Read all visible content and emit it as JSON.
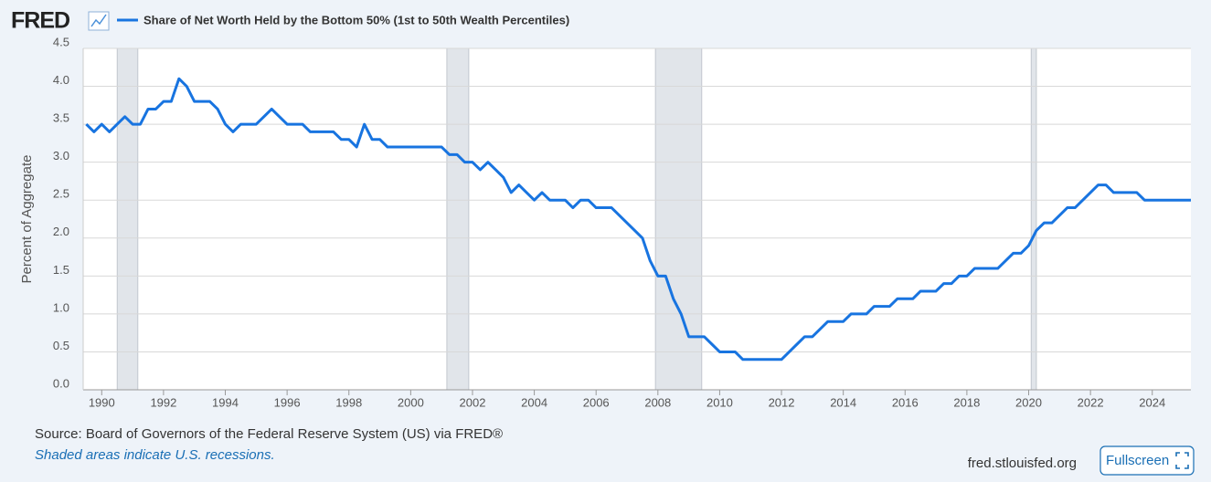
{
  "logo": "FRED",
  "chart_data": {
    "type": "line",
    "y_label": "Percent of Aggregate",
    "series": [
      {
        "name": "Share of Net Worth Held by the Bottom 50% (1st to 50th Wealth Percentiles)",
        "color": "#1874e0",
        "values": [
          3.5,
          3.4,
          3.5,
          3.4,
          3.5,
          3.6,
          3.5,
          3.5,
          3.7,
          3.7,
          3.8,
          3.8,
          4.1,
          4.0,
          3.8,
          3.8,
          3.7,
          3.5,
          3.4,
          3.5,
          3.5,
          3.7,
          3.5,
          3.5,
          3.4,
          3.4,
          3.3,
          3.3,
          3.2,
          3.5,
          3.3,
          3.3,
          3.2,
          3.2,
          3.1,
          3.1,
          3.0,
          3.0,
          2.9,
          3.0,
          2.9,
          2.8,
          2.6,
          2.7,
          2.6,
          2.5,
          2.6,
          2.5,
          2.5,
          2.4,
          2.5,
          2.5,
          2.4,
          2.4,
          2.0,
          1.7,
          1.5,
          1.5,
          1.2,
          1.0,
          0.7,
          0.7,
          0.6,
          0.5,
          0.5,
          0.4,
          0.4,
          0.6,
          0.7,
          0.7,
          0.9,
          0.9,
          1.0,
          1.0,
          1.1,
          1.1,
          1.2,
          1.2,
          1.3,
          1.3,
          1.4,
          1.4,
          1.5,
          1.5,
          1.6,
          1.6,
          1.8,
          1.8,
          1.9,
          2.1,
          2.2,
          2.2,
          2.4,
          2.4,
          2.7,
          2.7,
          2.6,
          2.6,
          2.5,
          2.5
        ]
      }
    ],
    "x": [
      1989.5,
      1989.75,
      1990,
      1990.25,
      1990.5,
      1990.75,
      1991,
      1991.25,
      1991.5,
      1991.75,
      1992,
      1992.25,
      1992.5,
      1992.75,
      1993,
      1993.5,
      1993.75,
      1994,
      1994.25,
      1994.5,
      1995,
      1995.5,
      1996,
      1996.5,
      1996.75,
      1997.5,
      1997.75,
      1998,
      1998.25,
      1998.5,
      1998.75,
      1999,
      1999.25,
      2001,
      2001.25,
      2001.5,
      2001.75,
      2002,
      2002.25,
      2002.5,
      2002.75,
      2003,
      2003.25,
      2003.5,
      2003.75,
      2004,
      2004.25,
      2004.5,
      2005,
      2005.25,
      2005.5,
      2005.75,
      2006,
      2006.5,
      2007.5,
      2007.75,
      2008,
      2008.25,
      2008.5,
      2008.75,
      2009,
      2009.5,
      2009.75,
      2010,
      2010.5,
      2010.75,
      2012,
      2012.5,
      2012.75,
      2013,
      2013.5,
      2014,
      2014.25,
      2014.75,
      2015,
      2015.5,
      2015.75,
      2016.25,
      2016.5,
      2017,
      2017.25,
      2017.5,
      2017.75,
      2018,
      2018.25,
      2019,
      2019.5,
      2019.75,
      2020,
      2020.25,
      2020.5,
      2020.75,
      2021.25,
      2021.5,
      2022.25,
      2022.5,
      2022.75,
      2023.5,
      2023.75,
      2025.25
    ],
    "xlim": [
      1989.4,
      2025.25
    ],
    "xticks": [
      1990,
      1992,
      1994,
      1996,
      1998,
      2000,
      2002,
      2004,
      2006,
      2008,
      2010,
      2012,
      2014,
      2016,
      2018,
      2020,
      2022,
      2024
    ],
    "ylim": [
      0,
      4.5
    ],
    "yticks": [
      {
        "value": 0,
        "label": "0.0"
      },
      0.5,
      {
        "value": 1,
        "label": "1.0"
      },
      1.5,
      {
        "value": 2,
        "label": "2.0"
      },
      2.5,
      {
        "value": 3,
        "label": "3.0"
      },
      3.5,
      {
        "value": 4,
        "label": "4.0"
      },
      4.5
    ],
    "grid": true,
    "recessions": [
      [
        1990.5,
        1991.17
      ],
      [
        2001.17,
        2001.88
      ],
      [
        2007.92,
        2009.42
      ],
      [
        2020.08,
        2020.25
      ]
    ],
    "recession_color": "#e1e5ea"
  },
  "footer": {
    "source": "Source: Board of Governors of the Federal Reserve System (US) via FRED®",
    "note": "Shaded areas indicate U.S. recessions.",
    "url": "fred.stlouisfed.org",
    "button": "Fullscreen"
  }
}
